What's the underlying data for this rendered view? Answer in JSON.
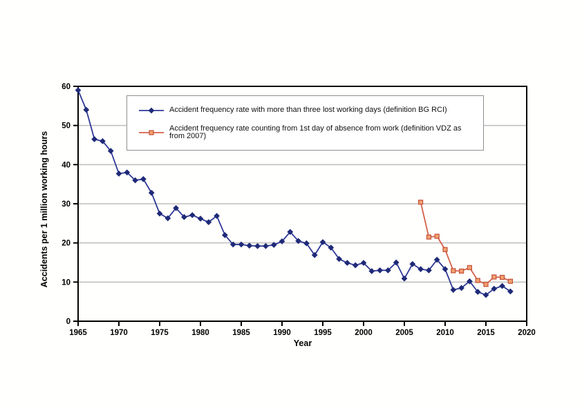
{
  "chart_data": {
    "type": "line",
    "title": "",
    "xlabel": "Year",
    "ylabel": "Accidents per 1 million working hours",
    "xlim": [
      1965,
      2020
    ],
    "ylim": [
      0,
      60
    ],
    "x_ticks": [
      1965,
      1970,
      1975,
      1980,
      1985,
      1990,
      1995,
      2000,
      2005,
      2010,
      2015,
      2020
    ],
    "y_ticks": [
      0,
      10,
      20,
      30,
      40,
      50,
      60
    ],
    "y_gridlines": [
      10,
      20,
      30,
      40,
      50
    ],
    "grid": "horizontal-only",
    "legend_position": "inside-top-center",
    "colors": {
      "grid": "#bdbdbd",
      "plot_border": "#000000",
      "background": "#fffffd"
    },
    "series": [
      {
        "name": "Accident frequency rate with more than three lost working days (definition BG RCI)",
        "marker": "diamond",
        "line_color": "#2d3796",
        "marker_fill": "#1f2a78",
        "marker_edge": "#1f2a78",
        "years": [
          1965,
          1966,
          1967,
          1968,
          1969,
          1970,
          1971,
          1972,
          1973,
          1974,
          1975,
          1976,
          1977,
          1978,
          1979,
          1980,
          1981,
          1982,
          1983,
          1984,
          1985,
          1986,
          1987,
          1988,
          1989,
          1990,
          1991,
          1992,
          1993,
          1994,
          1995,
          1996,
          1997,
          1998,
          1999,
          2000,
          2001,
          2002,
          2003,
          2004,
          2005,
          2006,
          2007,
          2008,
          2009,
          2010,
          2011,
          2012,
          2013,
          2014,
          2015,
          2016,
          2017,
          2018
        ],
        "values": [
          59,
          54,
          46.5,
          46,
          43.5,
          37.7,
          38,
          36,
          36.3,
          32.8,
          27.5,
          26.3,
          28.9,
          26.6,
          27.1,
          26.2,
          25.3,
          26.9,
          22,
          19.6,
          19.6,
          19.3,
          19.2,
          19.2,
          19.5,
          20.4,
          22.8,
          20.5,
          19.9,
          16.9,
          20.2,
          18.8,
          15.9,
          14.9,
          14.3,
          14.9,
          12.8,
          13,
          13,
          15,
          10.9,
          14.6,
          13.3,
          13,
          15.7,
          13.3,
          8,
          8.5,
          10.2,
          7.5,
          6.7,
          8.3,
          9,
          7.6
        ]
      },
      {
        "name": "Accident frequency rate counting from 1st day of absence from work (definition VDZ as from 2007)",
        "marker": "square",
        "line_color": "#d4604a",
        "marker_fill": "#f2a170",
        "marker_edge": "#c34f38",
        "years": [
          2007,
          2008,
          2009,
          2010,
          2011,
          2012,
          2013,
          2014,
          2015,
          2016,
          2017,
          2018
        ],
        "values": [
          30.4,
          21.5,
          21.7,
          18.3,
          12.9,
          12.8,
          13.7,
          10.4,
          9.4,
          11.3,
          11.2,
          10.2
        ]
      }
    ]
  }
}
